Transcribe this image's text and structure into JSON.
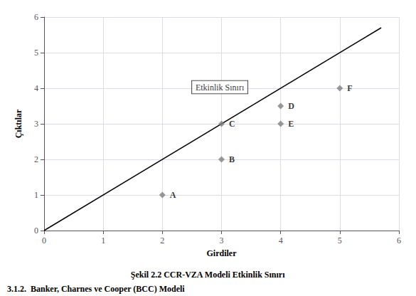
{
  "chart_data": {
    "type": "scatter",
    "xlabel": "Girdiler",
    "ylabel": "Çıktılar",
    "caption": "Şekil 2.2 CCR-VZA Modeli Etkinlik Sınırı",
    "footer": "3.1.2.  Banker, Charnes ve Cooper (BCC) Modeli",
    "xlim": [
      0,
      6
    ],
    "ylim": [
      0,
      6
    ],
    "xticks": [
      0,
      1,
      2,
      3,
      4,
      5,
      6
    ],
    "yticks": [
      0,
      1,
      2,
      3,
      4,
      5,
      6
    ],
    "grid": true,
    "series": [
      {
        "type": "line",
        "color": "#000000",
        "line_style": "solid",
        "x": [
          0,
          5.7
        ],
        "values": [
          0,
          5.7
        ]
      },
      {
        "type": "scatter",
        "color": "#808080",
        "marker": "diamond",
        "x": [
          2,
          3,
          3,
          4,
          4,
          5
        ],
        "values": [
          1,
          2,
          3,
          3.5,
          3,
          4
        ],
        "point_labels": [
          "A",
          "B",
          "C",
          "D",
          "E",
          "F"
        ]
      }
    ],
    "annotations": [
      {
        "text": "Etkinlik Sınırı",
        "x": 2.5,
        "y": 3.85
      }
    ]
  }
}
